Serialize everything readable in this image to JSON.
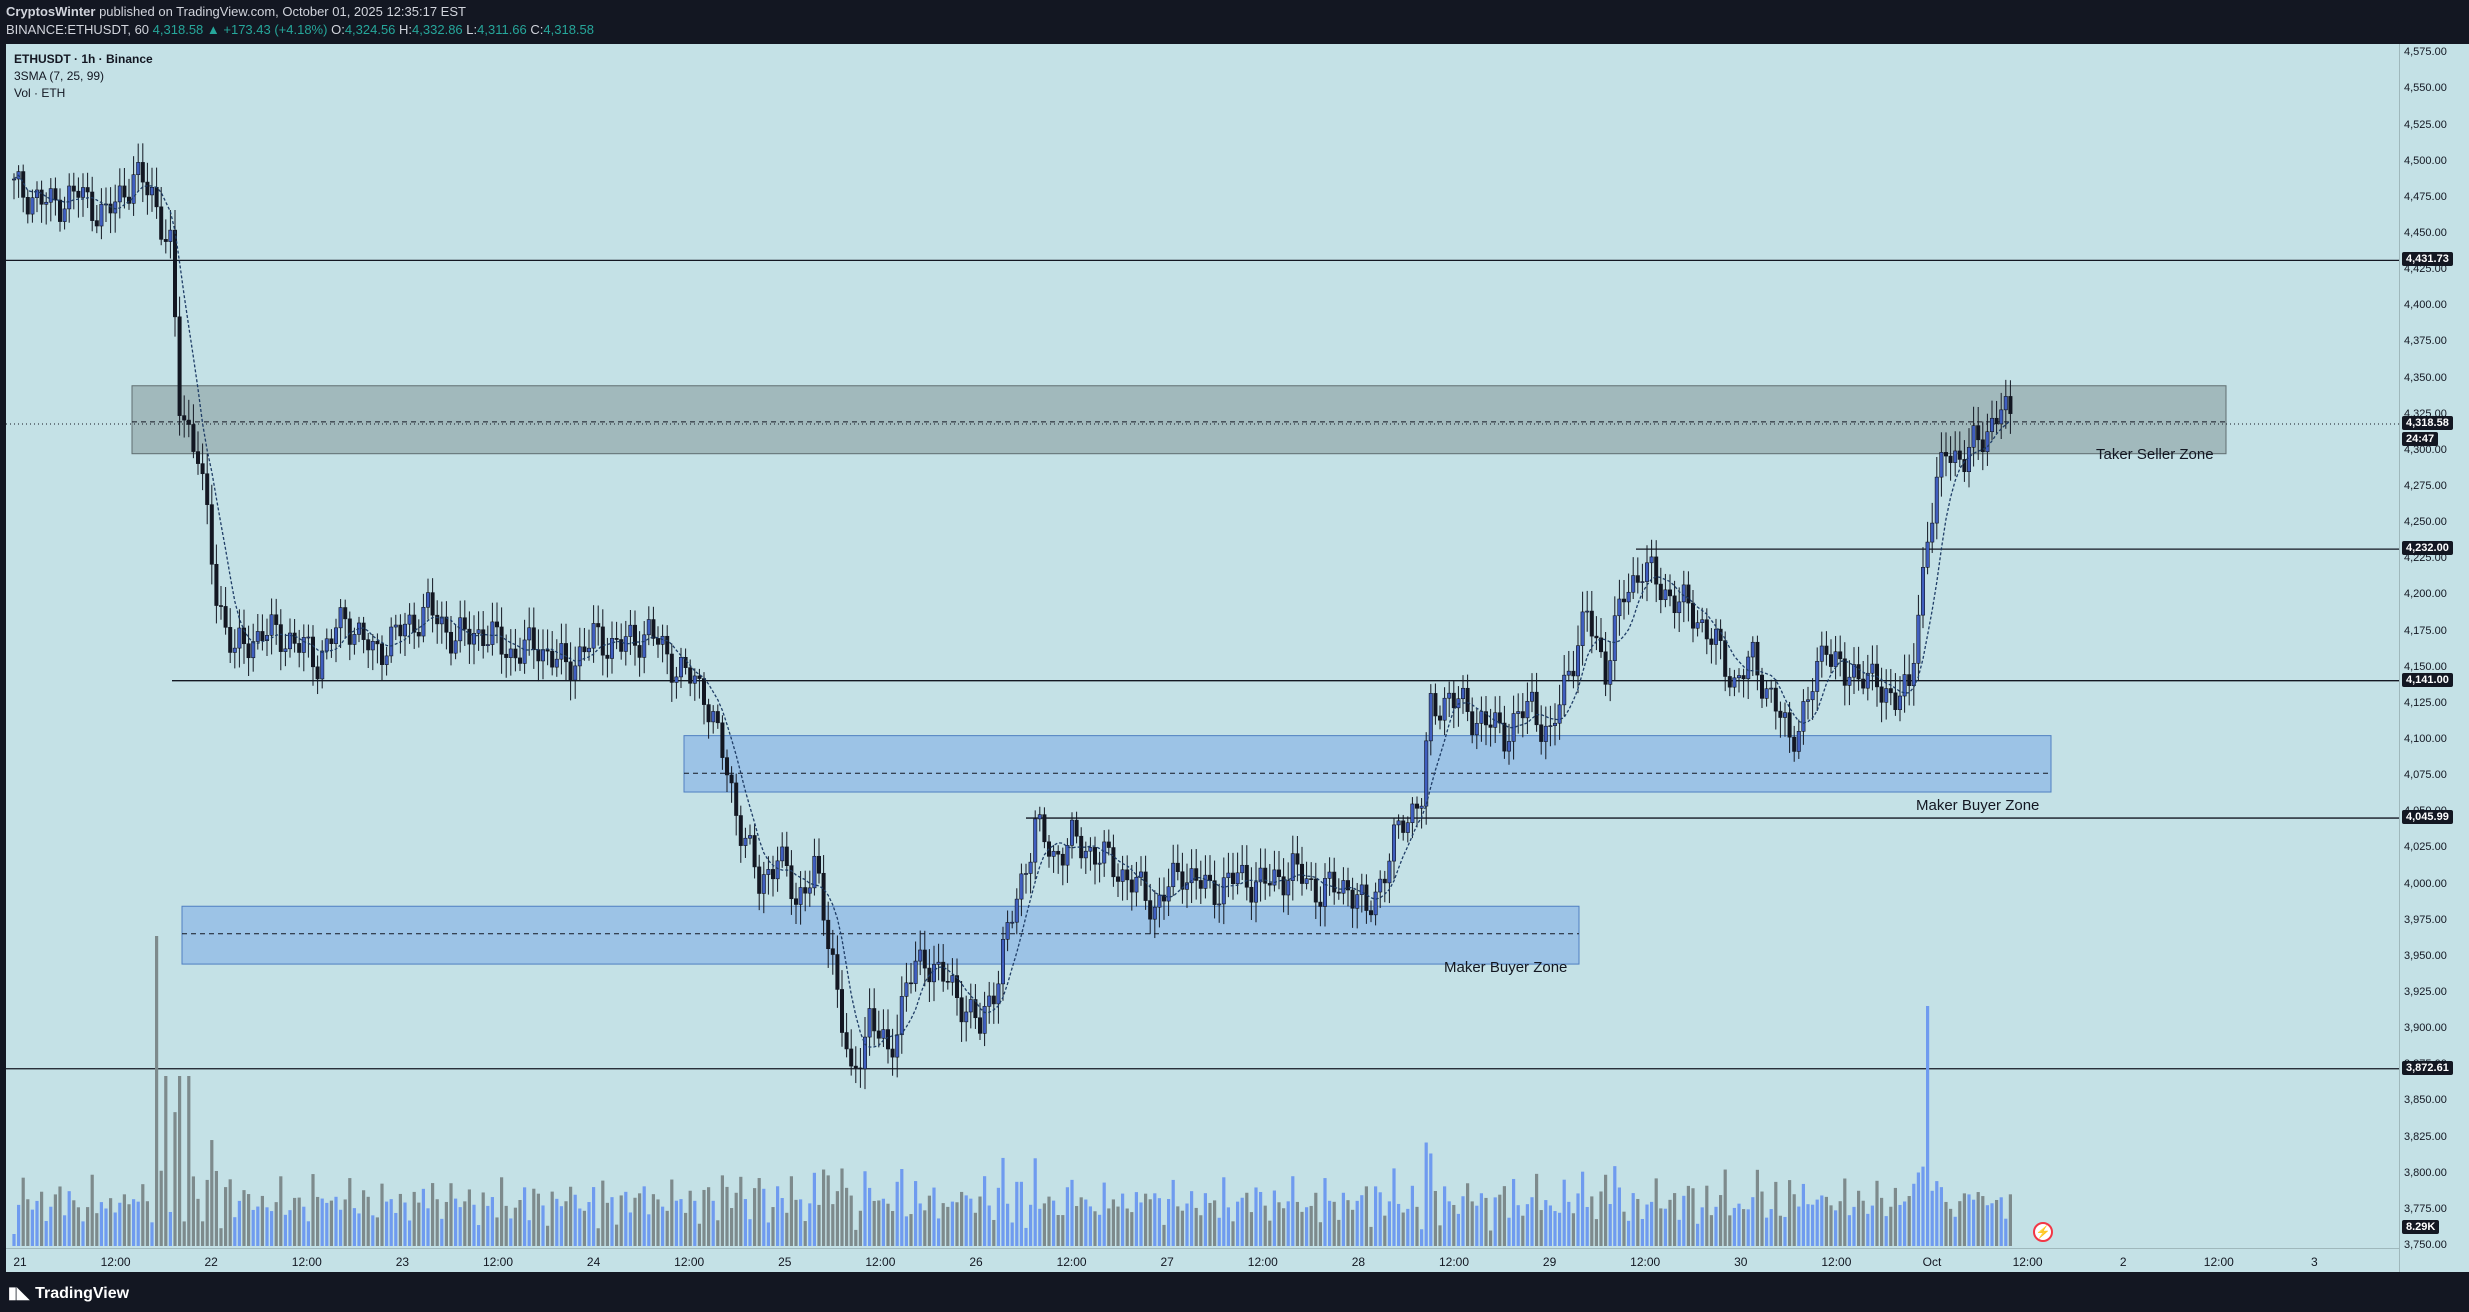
{
  "header": {
    "author": "CryptosWinter",
    "published_text": "published on TradingView.com, October 01, 2025 12:35:17 EST",
    "symbol_line": "BINANCE:ETHUSDT, 60",
    "open_label": "O:",
    "open": "4,324.56",
    "high_label": "H:",
    "high": "4,332.86",
    "low_label": "L:",
    "low": "4,311.66",
    "close_label": "C:",
    "close": "4,318.58",
    "change": "4,318.58 ▲ +173.43 (+4.18%)"
  },
  "legend": {
    "symbol": "ETHUSDT · 1h · Binance",
    "sma": "3SMA (7, 25, 99)",
    "volume": "Vol · ETH"
  },
  "zones": {
    "seller": "Taker Seller Zone",
    "buyer_upper": "Maker Buyer Zone",
    "buyer_lower": "Maker Buyer Zone"
  },
  "price_axis": {
    "ticks": [
      "4,575.00",
      "4,550.00",
      "4,525.00",
      "4,500.00",
      "4,475.00",
      "4,450.00",
      "4,425.00",
      "4,400.00",
      "4,375.00",
      "4,350.00",
      "4,325.00",
      "4,300.00",
      "4,275.00",
      "4,250.00",
      "4,225.00",
      "4,200.00",
      "4,175.00",
      "4,150.00",
      "4,125.00",
      "4,100.00",
      "4,075.00",
      "4,050.00",
      "4,025.00",
      "4,000.00",
      "3,975.00",
      "3,950.00",
      "3,925.00",
      "3,900.00",
      "3,875.00",
      "3,850.00",
      "3,825.00",
      "3,800.00",
      "3,775.00",
      "3,750.00"
    ],
    "tags": {
      "level_1": "4,431.73",
      "current": "4,318.58",
      "countdown": "24:47",
      "level_2": "4,232.00",
      "level_3": "4,141.00",
      "level_4": "4,045.99",
      "level_5": "3,872.61",
      "volume": "8.29K"
    }
  },
  "time_axis": [
    "21",
    "12:00",
    "22",
    "12:00",
    "23",
    "12:00",
    "24",
    "12:00",
    "25",
    "12:00",
    "26",
    "12:00",
    "27",
    "12:00",
    "28",
    "12:00",
    "29",
    "12:00",
    "30",
    "12:00",
    "Oct",
    "12:00",
    "2",
    "12:00",
    "3"
  ],
  "footer": {
    "brand": "TradingView"
  },
  "colors": {
    "background": "#c4e1e6",
    "seller_zone": "#8fa3a6",
    "buyer_zone": "#8fb8e6",
    "candle": "#131722",
    "candle_up": "#3f5ebf",
    "volume_up": "#6f9bef",
    "volume_down": "#7d8a8c"
  },
  "chart_data": {
    "type": "candlestick",
    "ylim": [
      3750,
      4580
    ],
    "x_labels": [
      "21",
      "12:00",
      "22",
      "12:00",
      "23",
      "12:00",
      "24",
      "12:00",
      "25",
      "12:00",
      "26",
      "12:00",
      "27",
      "12:00",
      "28",
      "12:00",
      "29",
      "12:00",
      "30",
      "12:00",
      "Oct",
      "12:00",
      "2",
      "12:00",
      "3"
    ],
    "horizontal_levels": [
      4431.73,
      4232.0,
      4141.0,
      4045.99,
      3872.61
    ],
    "zones": [
      {
        "name": "Taker Seller Zone",
        "from": 4298,
        "to": 4345,
        "mid": 4320
      },
      {
        "name": "Maker Buyer Zone",
        "from": 4064,
        "to": 4103,
        "mid": 4077
      },
      {
        "name": "Maker Buyer Zone",
        "from": 3945,
        "to": 3985,
        "mid": 3966
      }
    ],
    "current_price": 4318.58,
    "last_volume": "8.29K",
    "close_path": [
      [
        0,
        4482
      ],
      [
        8,
        4470
      ],
      [
        14,
        4478
      ],
      [
        20,
        4462
      ],
      [
        26,
        4490
      ],
      [
        30,
        4478
      ],
      [
        34,
        4440
      ],
      [
        36,
        4330
      ],
      [
        40,
        4300
      ],
      [
        44,
        4200
      ],
      [
        48,
        4160
      ],
      [
        54,
        4175
      ],
      [
        60,
        4170
      ],
      [
        66,
        4155
      ],
      [
        72,
        4185
      ],
      [
        78,
        4160
      ],
      [
        84,
        4175
      ],
      [
        90,
        4190
      ],
      [
        96,
        4170
      ],
      [
        102,
        4175
      ],
      [
        108,
        4160
      ],
      [
        114,
        4165
      ],
      [
        120,
        4150
      ],
      [
        126,
        4170
      ],
      [
        132,
        4165
      ],
      [
        138,
        4175
      ],
      [
        144,
        4150
      ],
      [
        150,
        4135
      ],
      [
        154,
        4090
      ],
      [
        158,
        4040
      ],
      [
        162,
        4000
      ],
      [
        166,
        4020
      ],
      [
        170,
        3990
      ],
      [
        174,
        4010
      ],
      [
        178,
        3950
      ],
      [
        182,
        3860
      ],
      [
        186,
        3910
      ],
      [
        190,
        3880
      ],
      [
        194,
        3930
      ],
      [
        198,
        3950
      ],
      [
        202,
        3935
      ],
      [
        206,
        3920
      ],
      [
        210,
        3900
      ],
      [
        214,
        3940
      ],
      [
        218,
        3990
      ],
      [
        222,
        4040
      ],
      [
        226,
        4020
      ],
      [
        230,
        4030
      ],
      [
        236,
        4020
      ],
      [
        242,
        4005
      ],
      [
        248,
        3985
      ],
      [
        254,
        4010
      ],
      [
        260,
        3995
      ],
      [
        266,
        4005
      ],
      [
        272,
        4000
      ],
      [
        278,
        4010
      ],
      [
        284,
        3995
      ],
      [
        290,
        4000
      ],
      [
        294,
        3980
      ],
      [
        298,
        4010
      ],
      [
        302,
        4045
      ],
      [
        306,
        4060
      ],
      [
        308,
        4120
      ],
      [
        312,
        4130
      ],
      [
        318,
        4115
      ],
      [
        324,
        4105
      ],
      [
        330,
        4125
      ],
      [
        334,
        4100
      ],
      [
        338,
        4150
      ],
      [
        342,
        4185
      ],
      [
        346,
        4150
      ],
      [
        350,
        4200
      ],
      [
        354,
        4220
      ],
      [
        358,
        4205
      ],
      [
        362,
        4195
      ],
      [
        366,
        4185
      ],
      [
        370,
        4165
      ],
      [
        374,
        4140
      ],
      [
        378,
        4155
      ],
      [
        382,
        4130
      ],
      [
        386,
        4100
      ],
      [
        390,
        4125
      ],
      [
        394,
        4170
      ],
      [
        398,
        4140
      ],
      [
        402,
        4150
      ],
      [
        406,
        4130
      ],
      [
        410,
        4135
      ],
      [
        412,
        4130
      ],
      [
        416,
        4245
      ],
      [
        420,
        4300
      ],
      [
        424,
        4295
      ],
      [
        428,
        4310
      ],
      [
        432,
        4330
      ],
      [
        434,
        4318.58
      ]
    ]
  }
}
